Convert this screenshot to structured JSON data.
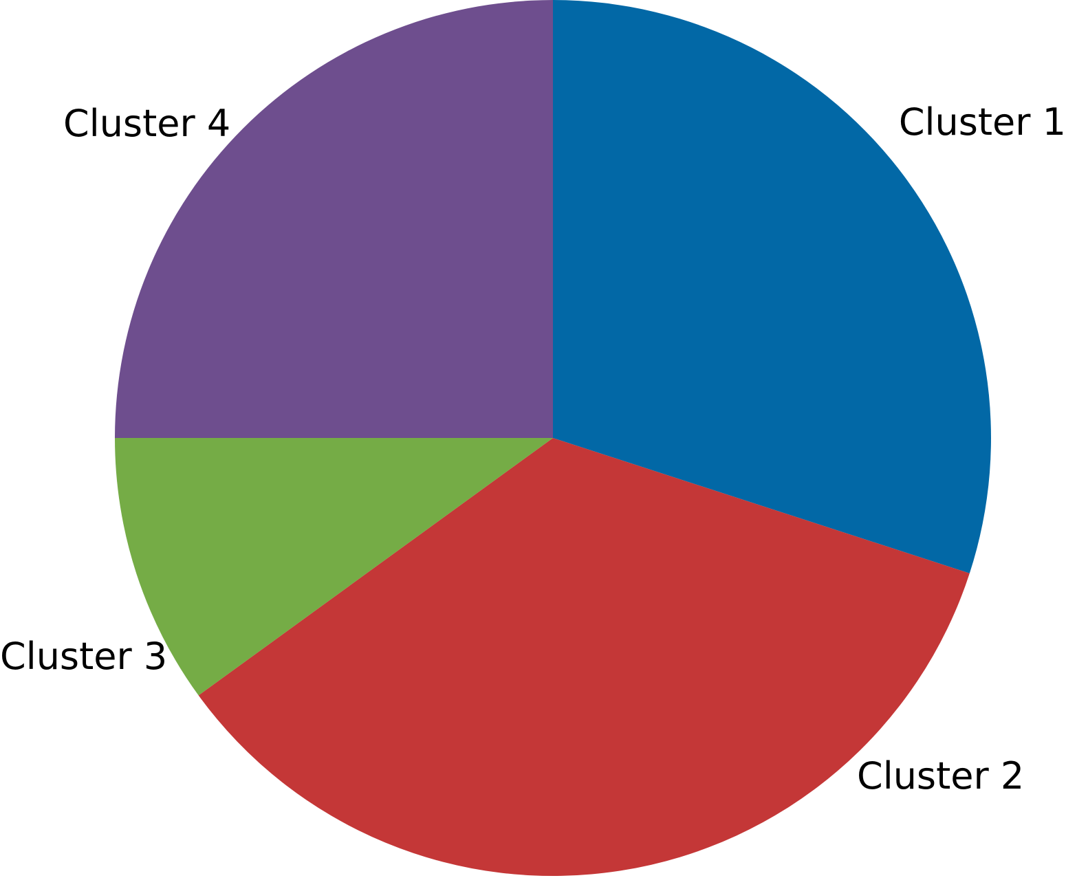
{
  "chart_data": {
    "type": "pie",
    "title": "",
    "categories": [
      "Cluster 1",
      "Cluster 2",
      "Cluster 3",
      "Cluster 4"
    ],
    "values": [
      30,
      35,
      10,
      25
    ],
    "colors": [
      "#0268A6",
      "#C43737",
      "#75AC46",
      "#6E4E8E"
    ],
    "start_angle_deg": 0,
    "direction": "clockwise",
    "legend": "none",
    "labels_outside": true
  }
}
